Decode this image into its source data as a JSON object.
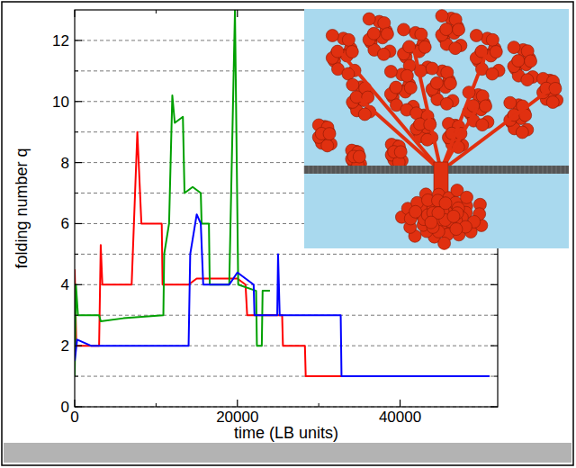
{
  "chart_data": {
    "type": "line",
    "x_label": "time (LB units)",
    "y_label": "folding number q",
    "xlim": [
      0,
      52000
    ],
    "ylim": [
      0,
      13
    ],
    "xticks": [
      0,
      20000,
      40000
    ],
    "yticks": [
      0,
      2,
      4,
      6,
      8,
      10,
      12
    ],
    "grid": true,
    "series": [
      {
        "color": "#ff0000",
        "x": [
          0,
          200,
          3000,
          3200,
          3400,
          7000,
          7700,
          8200,
          10700,
          10800,
          14000,
          15000,
          20000,
          21000,
          21200,
          25500,
          25600,
          28300,
          28400,
          51000
        ],
        "values": [
          4.5,
          2,
          2,
          5.3,
          4,
          4,
          9,
          6,
          6,
          4,
          4,
          4.2,
          4.2,
          4,
          3,
          3,
          2,
          2,
          1,
          1
        ]
      },
      {
        "color": "#00a000",
        "x": [
          0,
          150,
          400,
          3000,
          3200,
          6000,
          10900,
          11000,
          11600,
          12000,
          12300,
          13300,
          13500,
          14500,
          15500,
          15600,
          16500,
          16600,
          19000,
          19700,
          20100,
          22300,
          22400,
          23000,
          23100,
          24000
        ],
        "values": [
          1,
          4,
          3,
          3,
          2.8,
          2.9,
          3,
          5,
          6,
          10.2,
          9.3,
          9.5,
          7,
          7.2,
          7,
          6,
          6,
          4,
          4,
          13,
          4,
          3.8,
          2,
          2,
          3.8,
          3.8
        ]
      },
      {
        "color": "#0000ff",
        "x": [
          0,
          300,
          2000,
          14000,
          14200,
          15000,
          15500,
          15800,
          19000,
          20000,
          22000,
          22100,
          24900,
          25000,
          25200,
          32700,
          32800,
          51000
        ],
        "values": [
          1.5,
          2.2,
          2,
          2,
          5,
          6.3,
          6,
          4,
          4,
          4.4,
          4,
          3,
          3,
          5,
          3,
          3,
          1,
          1
        ]
      }
    ]
  }
}
